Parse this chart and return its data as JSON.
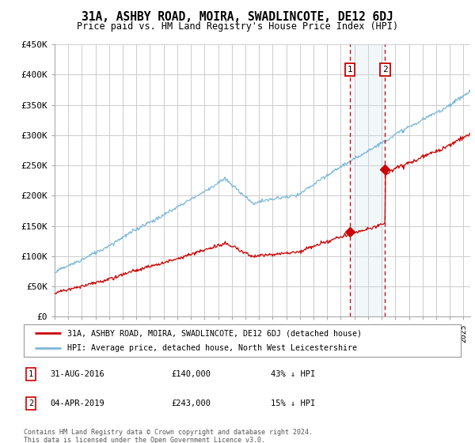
{
  "title": "31A, ASHBY ROAD, MOIRA, SWADLINCOTE, DE12 6DJ",
  "subtitle": "Price paid vs. HM Land Registry's House Price Index (HPI)",
  "legend_line1": "31A, ASHBY ROAD, MOIRA, SWADLINCOTE, DE12 6DJ (detached house)",
  "legend_line2": "HPI: Average price, detached house, North West Leicestershire",
  "annotation1_date": "31-AUG-2016",
  "annotation1_price": "£140,000",
  "annotation1_pct": "43% ↓ HPI",
  "annotation2_date": "04-APR-2019",
  "annotation2_price": "£243,000",
  "annotation2_pct": "15% ↓ HPI",
  "footer": "Contains HM Land Registry data © Crown copyright and database right 2024.\nThis data is licensed under the Open Government Licence v3.0.",
  "hpi_color": "#7ab8d9",
  "price_color": "#cc0000",
  "background_color": "#ffffff",
  "grid_color": "#cccccc",
  "annotation_box_color": "#cc0000",
  "annotation_bg_color": "#cfe0ef",
  "ylim": [
    0,
    450000
  ],
  "yticks": [
    0,
    50000,
    100000,
    150000,
    200000,
    250000,
    300000,
    350000,
    400000,
    450000
  ],
  "sale1_year": 2016.667,
  "sale1_price": 140000,
  "sale2_year": 2019.25,
  "sale2_price": 243000
}
